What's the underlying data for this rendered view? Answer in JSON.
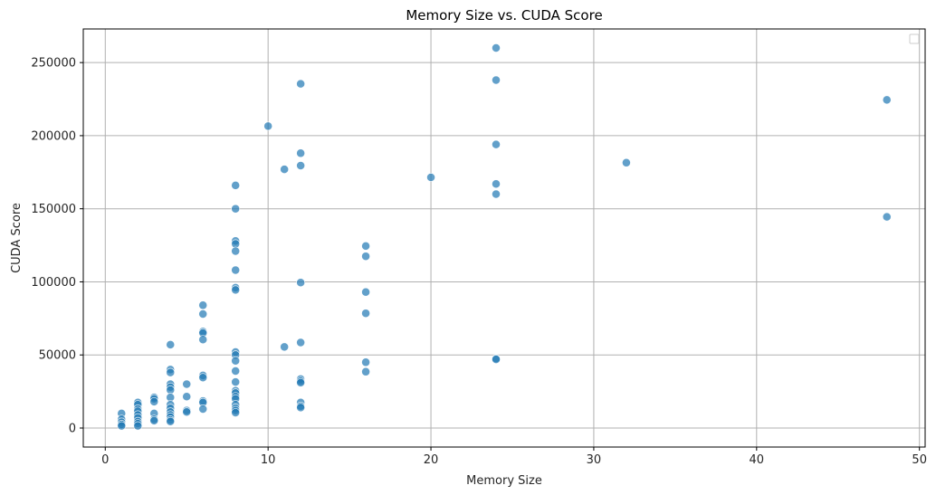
{
  "chart_data": {
    "type": "scatter",
    "title": "Memory Size vs. CUDA Score",
    "xlabel": "Memory Size",
    "ylabel": "CUDA Score",
    "xlim": [
      -1.35,
      50.35
    ],
    "ylim": [
      -13000,
      273000
    ],
    "x_ticks": [
      0,
      10,
      20,
      30,
      40,
      50
    ],
    "y_ticks": [
      0,
      50000,
      100000,
      150000,
      200000,
      250000
    ],
    "grid": true,
    "legend": "top-right (empty)",
    "point_color": "#1f77b4",
    "series": [
      {
        "points": [
          [
            1,
            10000
          ],
          [
            1,
            6000
          ],
          [
            1,
            4000
          ],
          [
            1,
            2500
          ],
          [
            1,
            1500
          ],
          [
            2,
            17500
          ],
          [
            2,
            16000
          ],
          [
            2,
            13000
          ],
          [
            2,
            11500
          ],
          [
            2,
            9000
          ],
          [
            2,
            7000
          ],
          [
            2,
            4500
          ],
          [
            2,
            3000
          ],
          [
            2,
            1500
          ],
          [
            3,
            21000
          ],
          [
            3,
            20000
          ],
          [
            3,
            18000
          ],
          [
            3,
            10000
          ],
          [
            3,
            6000
          ],
          [
            3,
            5000
          ],
          [
            4,
            57000
          ],
          [
            4,
            40000
          ],
          [
            4,
            38000
          ],
          [
            4,
            30000
          ],
          [
            4,
            28000
          ],
          [
            4,
            26000
          ],
          [
            4,
            21000
          ],
          [
            4,
            16000
          ],
          [
            4,
            13500
          ],
          [
            4,
            11000
          ],
          [
            4,
            9000
          ],
          [
            4,
            7500
          ],
          [
            4,
            5500
          ],
          [
            4,
            4500
          ],
          [
            5,
            30000
          ],
          [
            5,
            21500
          ],
          [
            5,
            12000
          ],
          [
            5,
            11000
          ],
          [
            6,
            84000
          ],
          [
            6,
            78000
          ],
          [
            6,
            66000
          ],
          [
            6,
            65000
          ],
          [
            6,
            60500
          ],
          [
            6,
            36000
          ],
          [
            6,
            34500
          ],
          [
            6,
            18500
          ],
          [
            6,
            17500
          ],
          [
            6,
            13000
          ],
          [
            8,
            166000
          ],
          [
            8,
            150000
          ],
          [
            8,
            128000
          ],
          [
            8,
            126000
          ],
          [
            8,
            121000
          ],
          [
            8,
            108000
          ],
          [
            8,
            96000
          ],
          [
            8,
            94500
          ],
          [
            8,
            52000
          ],
          [
            8,
            50000
          ],
          [
            8,
            46000
          ],
          [
            8,
            39000
          ],
          [
            8,
            31500
          ],
          [
            8,
            25500
          ],
          [
            8,
            24000
          ],
          [
            8,
            21500
          ],
          [
            8,
            20000
          ],
          [
            8,
            16000
          ],
          [
            8,
            13500
          ],
          [
            8,
            12000
          ],
          [
            8,
            10500
          ],
          [
            10,
            206500
          ],
          [
            11,
            177000
          ],
          [
            11,
            55500
          ],
          [
            12,
            235500
          ],
          [
            12,
            188000
          ],
          [
            12,
            179500
          ],
          [
            12,
            99500
          ],
          [
            12,
            58500
          ],
          [
            12,
            33500
          ],
          [
            12,
            32000
          ],
          [
            12,
            31000
          ],
          [
            12,
            17500
          ],
          [
            12,
            15000
          ],
          [
            12,
            14000
          ],
          [
            16,
            124500
          ],
          [
            16,
            117500
          ],
          [
            16,
            93000
          ],
          [
            16,
            78500
          ],
          [
            16,
            45000
          ],
          [
            16,
            38500
          ],
          [
            20,
            171500
          ],
          [
            24,
            260000
          ],
          [
            24,
            238000
          ],
          [
            24,
            194000
          ],
          [
            24,
            167000
          ],
          [
            24,
            160000
          ],
          [
            24,
            47500
          ],
          [
            24,
            47000
          ],
          [
            32,
            181500
          ],
          [
            48,
            224500
          ],
          [
            48,
            144500
          ]
        ]
      }
    ]
  }
}
